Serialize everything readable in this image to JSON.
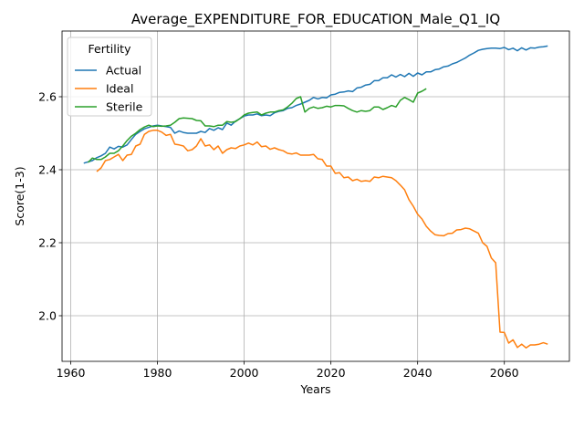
{
  "chart_data": {
    "type": "line",
    "title": "Average_EXPENDITURE_FOR_EDUCATION_Male_Q1_IQ",
    "xlabel": "Years",
    "ylabel": "Score(1-3)",
    "xlim": [
      1958,
      2075
    ],
    "ylim": [
      1.875,
      2.78
    ],
    "xticks": [
      1960,
      1980,
      2000,
      2020,
      2040,
      2060
    ],
    "yticks": [
      2.0,
      2.2,
      2.4,
      2.6
    ],
    "ytick_labels": [
      "2.0",
      "2.2",
      "2.4",
      "2.6"
    ],
    "grid": true,
    "legend": {
      "title": "Fertility",
      "position": "top-left"
    },
    "series": [
      {
        "name": "Actual",
        "color": "#1f77b4",
        "points": [
          [
            1963,
            2.418
          ],
          [
            1965,
            2.425
          ],
          [
            1966,
            2.433
          ],
          [
            1967,
            2.438
          ],
          [
            1968,
            2.445
          ],
          [
            1969,
            2.462
          ],
          [
            1970,
            2.457
          ],
          [
            1971,
            2.464
          ],
          [
            1972,
            2.462
          ],
          [
            1973,
            2.468
          ],
          [
            1974,
            2.483
          ],
          [
            1975,
            2.497
          ],
          [
            1976,
            2.505
          ],
          [
            1977,
            2.512
          ],
          [
            1978,
            2.516
          ],
          [
            1979,
            2.52
          ],
          [
            1980,
            2.522
          ],
          [
            1981,
            2.52
          ],
          [
            1982,
            2.518
          ],
          [
            1983,
            2.516
          ],
          [
            1984,
            2.5
          ],
          [
            1985,
            2.506
          ],
          [
            1986,
            2.502
          ],
          [
            1987,
            2.5
          ],
          [
            1988,
            2.5
          ],
          [
            1989,
            2.5
          ],
          [
            1990,
            2.505
          ],
          [
            1991,
            2.502
          ],
          [
            1992,
            2.513
          ],
          [
            1993,
            2.508
          ],
          [
            1994,
            2.515
          ],
          [
            1995,
            2.51
          ],
          [
            1996,
            2.528
          ],
          [
            1997,
            2.522
          ],
          [
            1998,
            2.533
          ],
          [
            1999,
            2.54
          ],
          [
            2000,
            2.547
          ],
          [
            2001,
            2.55
          ],
          [
            2002,
            2.55
          ],
          [
            2003,
            2.553
          ],
          [
            2004,
            2.548
          ],
          [
            2005,
            2.55
          ],
          [
            2006,
            2.548
          ],
          [
            2007,
            2.556
          ],
          [
            2008,
            2.56
          ],
          [
            2009,
            2.562
          ],
          [
            2010,
            2.568
          ],
          [
            2011,
            2.57
          ],
          [
            2012,
            2.576
          ],
          [
            2013,
            2.58
          ],
          [
            2014,
            2.585
          ],
          [
            2015,
            2.59
          ],
          [
            2016,
            2.598
          ],
          [
            2017,
            2.594
          ],
          [
            2018,
            2.598
          ],
          [
            2019,
            2.597
          ],
          [
            2020,
            2.605
          ],
          [
            2021,
            2.607
          ],
          [
            2022,
            2.612
          ],
          [
            2023,
            2.613
          ],
          [
            2024,
            2.616
          ],
          [
            2025,
            2.614
          ],
          [
            2026,
            2.624
          ],
          [
            2027,
            2.626
          ],
          [
            2028,
            2.632
          ],
          [
            2029,
            2.634
          ],
          [
            2030,
            2.644
          ],
          [
            2031,
            2.644
          ],
          [
            2032,
            2.652
          ],
          [
            2033,
            2.652
          ],
          [
            2034,
            2.66
          ],
          [
            2035,
            2.654
          ],
          [
            2036,
            2.661
          ],
          [
            2037,
            2.655
          ],
          [
            2038,
            2.664
          ],
          [
            2039,
            2.656
          ],
          [
            2040,
            2.665
          ],
          [
            2041,
            2.66
          ],
          [
            2042,
            2.668
          ],
          [
            2043,
            2.668
          ],
          [
            2044,
            2.674
          ],
          [
            2045,
            2.676
          ],
          [
            2046,
            2.682
          ],
          [
            2047,
            2.684
          ],
          [
            2048,
            2.69
          ],
          [
            2049,
            2.694
          ],
          [
            2050,
            2.7
          ],
          [
            2051,
            2.706
          ],
          [
            2052,
            2.714
          ],
          [
            2053,
            2.72
          ],
          [
            2054,
            2.727
          ],
          [
            2055,
            2.73
          ],
          [
            2056,
            2.732
          ],
          [
            2057,
            2.733
          ],
          [
            2058,
            2.733
          ],
          [
            2059,
            2.732
          ],
          [
            2060,
            2.735
          ],
          [
            2061,
            2.729
          ],
          [
            2062,
            2.733
          ],
          [
            2063,
            2.726
          ],
          [
            2064,
            2.734
          ],
          [
            2065,
            2.728
          ],
          [
            2066,
            2.734
          ],
          [
            2067,
            2.733
          ],
          [
            2068,
            2.736
          ],
          [
            2069,
            2.737
          ],
          [
            2070,
            2.739
          ]
        ]
      },
      {
        "name": "Ideal",
        "color": "#ff7f0e",
        "points": [
          [
            1966,
            2.395
          ],
          [
            1967,
            2.405
          ],
          [
            1968,
            2.425
          ],
          [
            1969,
            2.428
          ],
          [
            1970,
            2.435
          ],
          [
            1971,
            2.442
          ],
          [
            1972,
            2.425
          ],
          [
            1973,
            2.44
          ],
          [
            1974,
            2.442
          ],
          [
            1975,
            2.465
          ],
          [
            1976,
            2.47
          ],
          [
            1977,
            2.497
          ],
          [
            1978,
            2.505
          ],
          [
            1979,
            2.508
          ],
          [
            1980,
            2.508
          ],
          [
            1981,
            2.503
          ],
          [
            1982,
            2.494
          ],
          [
            1983,
            2.497
          ],
          [
            1984,
            2.47
          ],
          [
            1985,
            2.468
          ],
          [
            1986,
            2.465
          ],
          [
            1987,
            2.452
          ],
          [
            1988,
            2.455
          ],
          [
            1989,
            2.465
          ],
          [
            1990,
            2.485
          ],
          [
            1991,
            2.465
          ],
          [
            1992,
            2.468
          ],
          [
            1993,
            2.455
          ],
          [
            1994,
            2.465
          ],
          [
            1995,
            2.445
          ],
          [
            1996,
            2.455
          ],
          [
            1997,
            2.46
          ],
          [
            1998,
            2.458
          ],
          [
            1999,
            2.465
          ],
          [
            2000,
            2.468
          ],
          [
            2001,
            2.473
          ],
          [
            2002,
            2.468
          ],
          [
            2003,
            2.476
          ],
          [
            2004,
            2.463
          ],
          [
            2005,
            2.465
          ],
          [
            2006,
            2.456
          ],
          [
            2007,
            2.46
          ],
          [
            2008,
            2.455
          ],
          [
            2009,
            2.452
          ],
          [
            2010,
            2.445
          ],
          [
            2011,
            2.443
          ],
          [
            2012,
            2.446
          ],
          [
            2013,
            2.44
          ],
          [
            2014,
            2.44
          ],
          [
            2015,
            2.44
          ],
          [
            2016,
            2.442
          ],
          [
            2017,
            2.43
          ],
          [
            2018,
            2.428
          ],
          [
            2019,
            2.41
          ],
          [
            2020,
            2.41
          ],
          [
            2021,
            2.39
          ],
          [
            2022,
            2.392
          ],
          [
            2023,
            2.378
          ],
          [
            2024,
            2.38
          ],
          [
            2025,
            2.37
          ],
          [
            2026,
            2.374
          ],
          [
            2027,
            2.368
          ],
          [
            2028,
            2.37
          ],
          [
            2029,
            2.368
          ],
          [
            2030,
            2.38
          ],
          [
            2031,
            2.378
          ],
          [
            2032,
            2.382
          ],
          [
            2033,
            2.38
          ],
          [
            2034,
            2.378
          ],
          [
            2035,
            2.37
          ],
          [
            2036,
            2.358
          ],
          [
            2037,
            2.345
          ],
          [
            2038,
            2.318
          ],
          [
            2039,
            2.3
          ],
          [
            2040,
            2.278
          ],
          [
            2041,
            2.265
          ],
          [
            2042,
            2.245
          ],
          [
            2043,
            2.232
          ],
          [
            2044,
            2.222
          ],
          [
            2045,
            2.22
          ],
          [
            2046,
            2.219
          ],
          [
            2047,
            2.225
          ],
          [
            2048,
            2.226
          ],
          [
            2049,
            2.235
          ],
          [
            2050,
            2.236
          ],
          [
            2051,
            2.24
          ],
          [
            2052,
            2.238
          ],
          [
            2053,
            2.232
          ],
          [
            2054,
            2.226
          ],
          [
            2055,
            2.2
          ],
          [
            2056,
            2.19
          ],
          [
            2057,
            2.158
          ],
          [
            2058,
            2.145
          ],
          [
            2059,
            1.955
          ],
          [
            2060,
            1.954
          ],
          [
            2061,
            1.925
          ],
          [
            2062,
            1.934
          ],
          [
            2063,
            1.913
          ],
          [
            2064,
            1.922
          ],
          [
            2065,
            1.912
          ],
          [
            2066,
            1.92
          ],
          [
            2067,
            1.92
          ],
          [
            2068,
            1.922
          ],
          [
            2069,
            1.926
          ],
          [
            2070,
            1.922
          ]
        ]
      },
      {
        "name": "Sterile",
        "color": "#2ca02c",
        "points": [
          [
            1964,
            2.42
          ],
          [
            1965,
            2.432
          ],
          [
            1966,
            2.428
          ],
          [
            1967,
            2.428
          ],
          [
            1968,
            2.435
          ],
          [
            1969,
            2.445
          ],
          [
            1970,
            2.445
          ],
          [
            1971,
            2.452
          ],
          [
            1972,
            2.465
          ],
          [
            1973,
            2.48
          ],
          [
            1974,
            2.492
          ],
          [
            1975,
            2.5
          ],
          [
            1976,
            2.51
          ],
          [
            1977,
            2.517
          ],
          [
            1978,
            2.522
          ],
          [
            1979,
            2.518
          ],
          [
            1980,
            2.52
          ],
          [
            1981,
            2.519
          ],
          [
            1982,
            2.52
          ],
          [
            1983,
            2.522
          ],
          [
            1984,
            2.53
          ],
          [
            1985,
            2.54
          ],
          [
            1986,
            2.542
          ],
          [
            1987,
            2.541
          ],
          [
            1988,
            2.54
          ],
          [
            1989,
            2.535
          ],
          [
            1990,
            2.534
          ],
          [
            1991,
            2.52
          ],
          [
            1992,
            2.52
          ],
          [
            1993,
            2.518
          ],
          [
            1994,
            2.522
          ],
          [
            1995,
            2.522
          ],
          [
            1996,
            2.532
          ],
          [
            1997,
            2.53
          ],
          [
            1998,
            2.532
          ],
          [
            1999,
            2.54
          ],
          [
            2000,
            2.55
          ],
          [
            2001,
            2.555
          ],
          [
            2002,
            2.557
          ],
          [
            2003,
            2.558
          ],
          [
            2004,
            2.55
          ],
          [
            2005,
            2.555
          ],
          [
            2006,
            2.558
          ],
          [
            2007,
            2.558
          ],
          [
            2008,
            2.562
          ],
          [
            2009,
            2.564
          ],
          [
            2010,
            2.572
          ],
          [
            2011,
            2.582
          ],
          [
            2012,
            2.595
          ],
          [
            2013,
            2.6
          ],
          [
            2014,
            2.558
          ],
          [
            2015,
            2.568
          ],
          [
            2016,
            2.572
          ],
          [
            2017,
            2.568
          ],
          [
            2018,
            2.57
          ],
          [
            2019,
            2.574
          ],
          [
            2020,
            2.572
          ],
          [
            2021,
            2.576
          ],
          [
            2022,
            2.576
          ],
          [
            2023,
            2.575
          ],
          [
            2024,
            2.568
          ],
          [
            2025,
            2.562
          ],
          [
            2026,
            2.558
          ],
          [
            2027,
            2.562
          ],
          [
            2028,
            2.56
          ],
          [
            2029,
            2.562
          ],
          [
            2030,
            2.572
          ],
          [
            2031,
            2.572
          ],
          [
            2032,
            2.565
          ],
          [
            2033,
            2.57
          ],
          [
            2034,
            2.576
          ],
          [
            2035,
            2.572
          ],
          [
            2036,
            2.59
          ],
          [
            2037,
            2.598
          ],
          [
            2038,
            2.592
          ],
          [
            2039,
            2.585
          ],
          [
            2040,
            2.61
          ],
          [
            2041,
            2.615
          ],
          [
            2042,
            2.622
          ]
        ]
      }
    ]
  }
}
